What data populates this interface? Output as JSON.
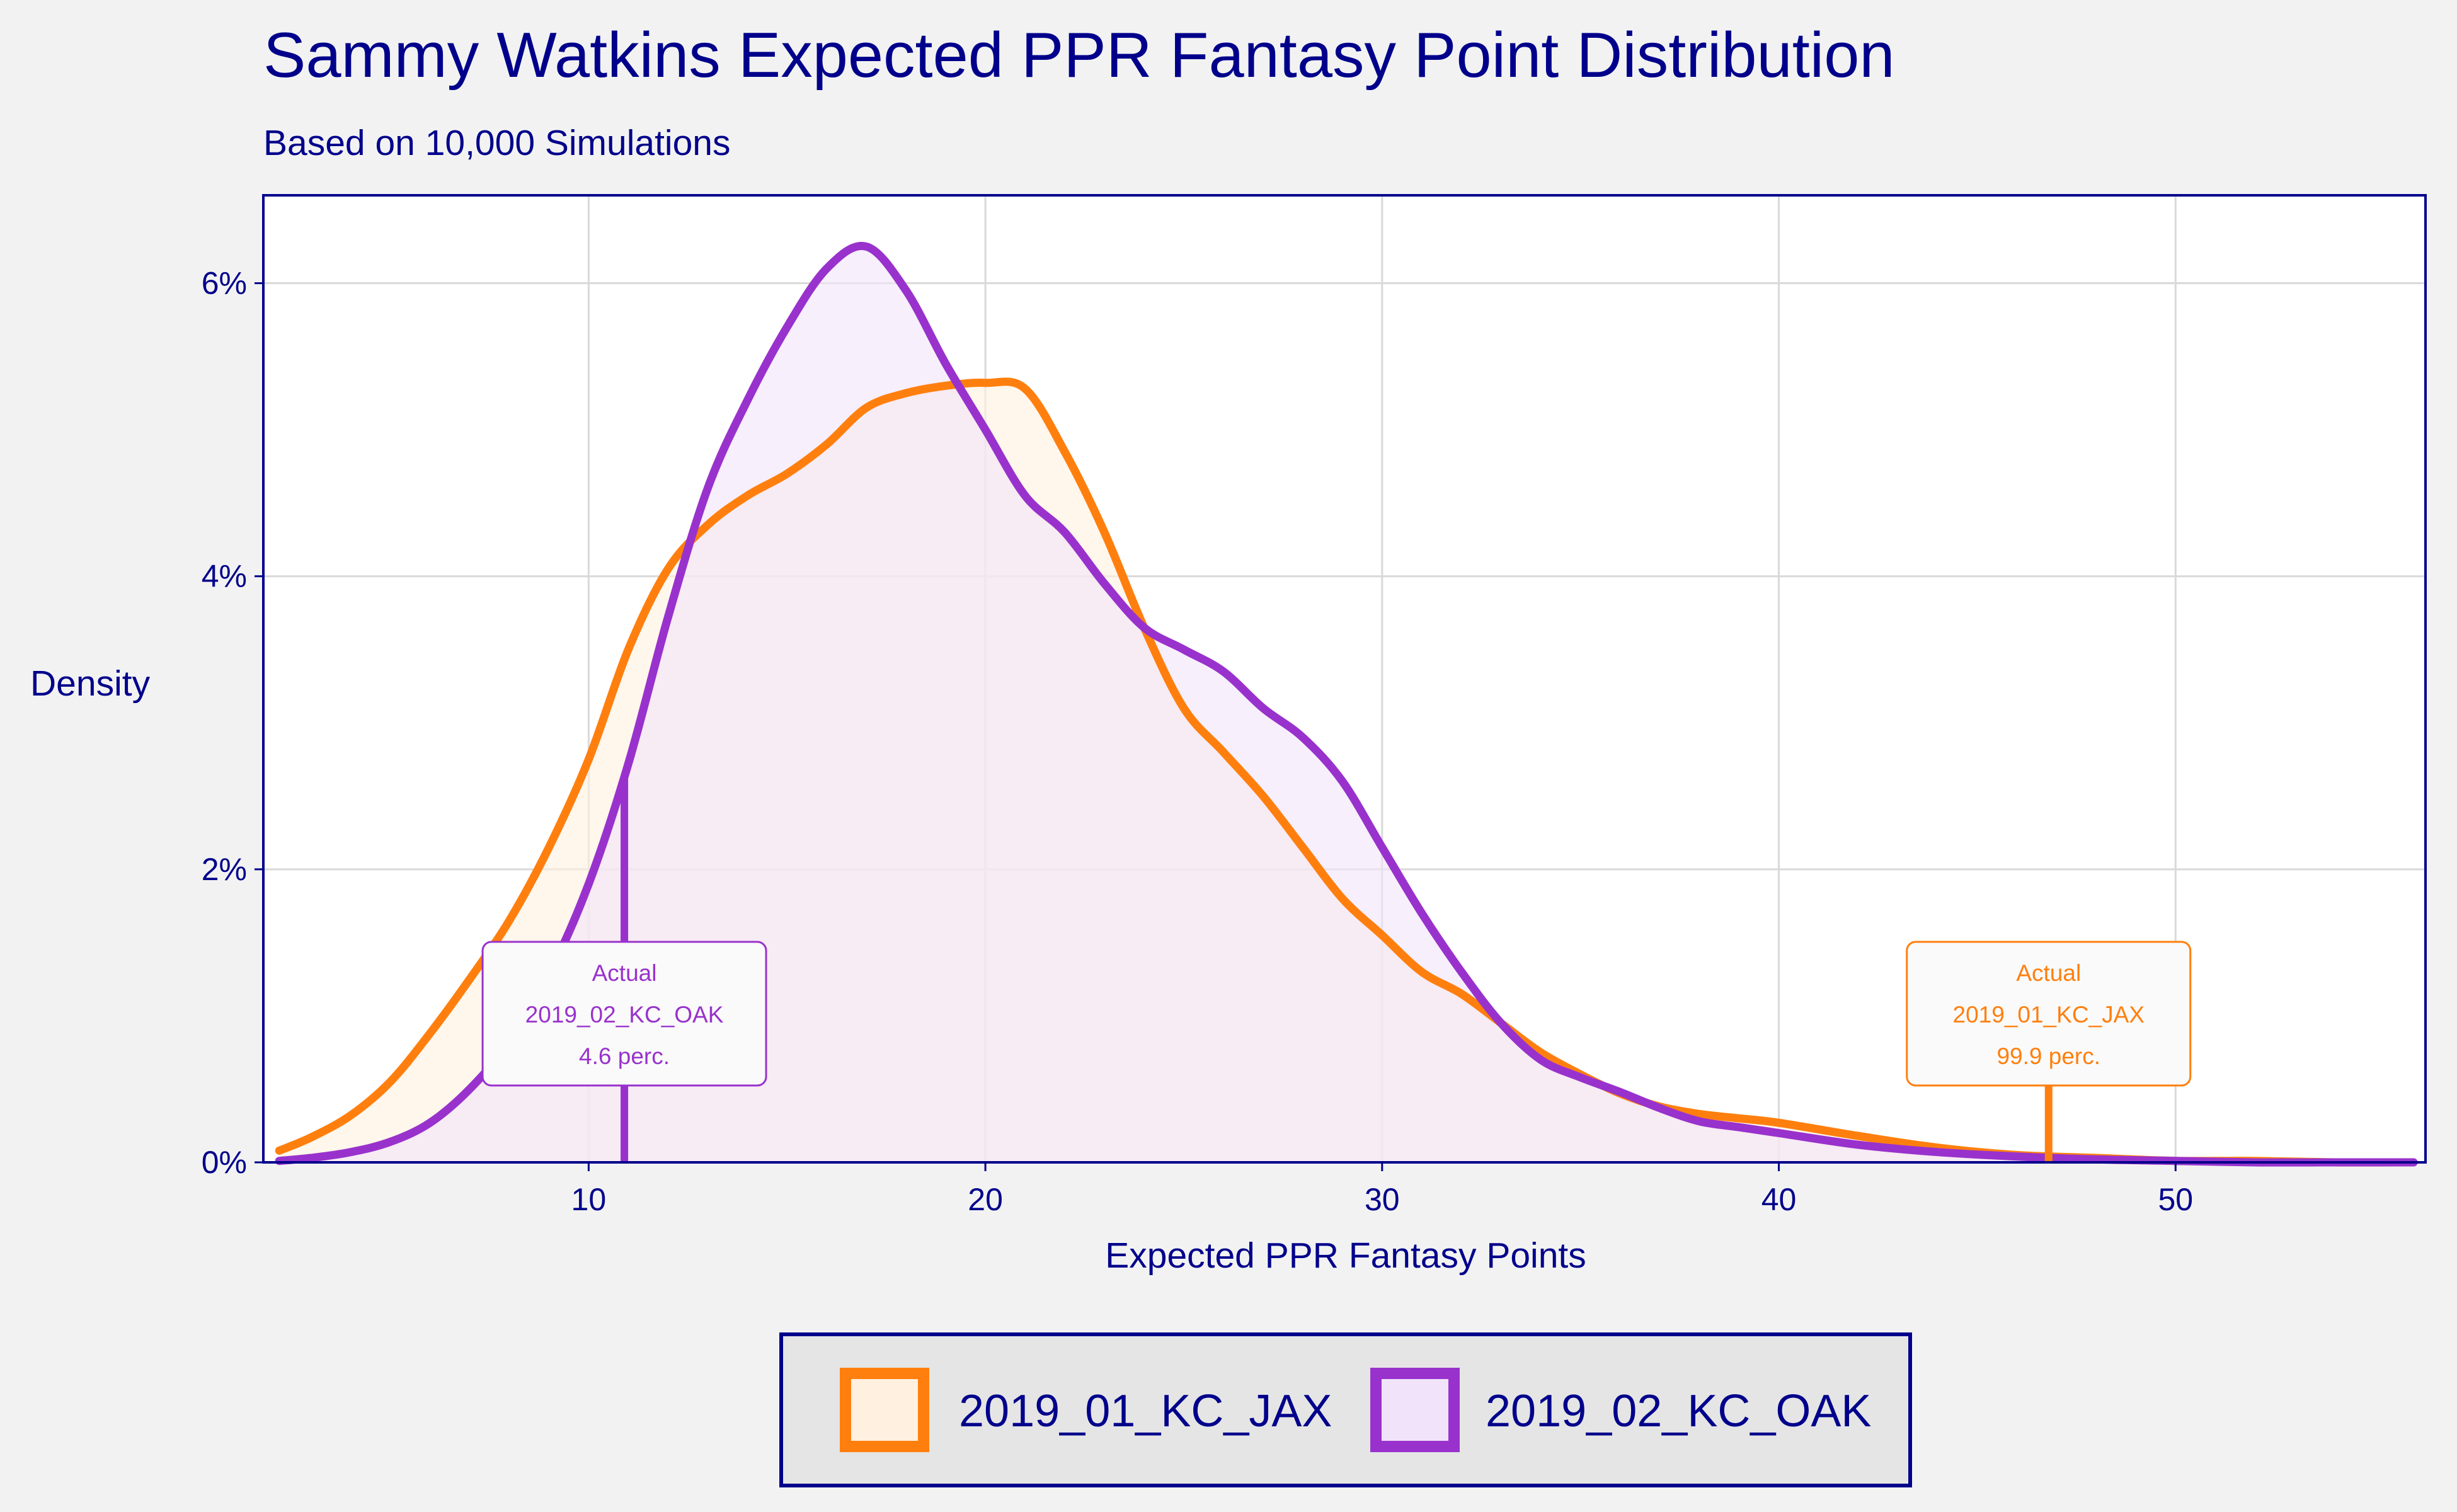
{
  "chart_data": {
    "type": "area",
    "title": "Sammy Watkins Expected PPR Fantasy Point Distribution",
    "subtitle": "Based on 10,000 Simulations",
    "xlabel": "Expected PPR Fantasy Points",
    "ylabel": "Density",
    "xlim": [
      1.8,
      56.3
    ],
    "ylim": [
      0,
      6.6
    ],
    "x_ticks": [
      {
        "value": 10,
        "label": "10"
      },
      {
        "value": 20,
        "label": "20"
      },
      {
        "value": 30,
        "label": "30"
      },
      {
        "value": 40,
        "label": "40"
      },
      {
        "value": 50,
        "label": "50"
      }
    ],
    "y_ticks": [
      {
        "value": 0,
        "label": "0%"
      },
      {
        "value": 2,
        "label": "2%"
      },
      {
        "value": 4,
        "label": "4%"
      },
      {
        "value": 6,
        "label": "6%"
      }
    ],
    "grid": true,
    "legend_position": "bottom",
    "series": [
      {
        "name": "2019_01_KC_JAX",
        "color": "#ff7f0e",
        "fill": "#fff0e0",
        "x": [
          2.2,
          3,
          4,
          5,
          6,
          7,
          8,
          9,
          10,
          11,
          12,
          13,
          14,
          15,
          16,
          17,
          18,
          19,
          20,
          21,
          22,
          23,
          24,
          25,
          26,
          27,
          28,
          29,
          30,
          31,
          32,
          33,
          34,
          35,
          36,
          37,
          38,
          39,
          40,
          42,
          44,
          46,
          48,
          50,
          52,
          54,
          56
        ],
        "y": [
          0.08,
          0.17,
          0.32,
          0.55,
          0.88,
          1.25,
          1.65,
          2.15,
          2.75,
          3.5,
          4.05,
          4.35,
          4.55,
          4.7,
          4.9,
          5.15,
          5.25,
          5.3,
          5.32,
          5.28,
          4.85,
          4.3,
          3.65,
          3.1,
          2.8,
          2.5,
          2.15,
          1.8,
          1.55,
          1.3,
          1.15,
          0.95,
          0.75,
          0.6,
          0.47,
          0.38,
          0.33,
          0.3,
          0.27,
          0.18,
          0.1,
          0.05,
          0.03,
          0.01,
          0.01,
          0.0,
          0.0
        ]
      },
      {
        "name": "2019_02_KC_OAK",
        "color": "#9932cc",
        "fill": "#f1e4fa",
        "x": [
          2.2,
          3,
          4,
          5,
          6,
          7,
          8,
          9,
          10,
          11,
          12,
          13,
          14,
          15,
          16,
          17,
          18,
          19,
          20,
          21,
          22,
          23,
          24,
          25,
          26,
          27,
          28,
          29,
          30,
          31,
          32,
          33,
          34,
          35,
          36,
          37,
          38,
          39,
          40,
          42,
          44,
          46,
          48,
          50,
          52,
          54,
          56
        ],
        "y": [
          0.01,
          0.03,
          0.07,
          0.14,
          0.27,
          0.5,
          0.82,
          1.28,
          1.9,
          2.72,
          3.72,
          4.6,
          5.2,
          5.7,
          6.1,
          6.25,
          5.95,
          5.45,
          5.0,
          4.55,
          4.3,
          3.95,
          3.65,
          3.5,
          3.35,
          3.1,
          2.9,
          2.6,
          2.15,
          1.7,
          1.3,
          0.95,
          0.7,
          0.58,
          0.48,
          0.37,
          0.28,
          0.24,
          0.2,
          0.12,
          0.07,
          0.04,
          0.02,
          0.01,
          0.0,
          0.0,
          0.0
        ]
      }
    ],
    "annotations": [
      {
        "series": "2019_02_KC_OAK",
        "x": 10.9,
        "lines": [
          "Actual",
          "2019_02_KC_OAK",
          "4.6 perc."
        ],
        "color": "#9932cc"
      },
      {
        "series": "2019_01_KC_JAX",
        "x": 46.8,
        "lines": [
          "Actual",
          "2019_01_KC_JAX",
          "99.9 perc."
        ],
        "color": "#ff7f0e"
      }
    ]
  }
}
